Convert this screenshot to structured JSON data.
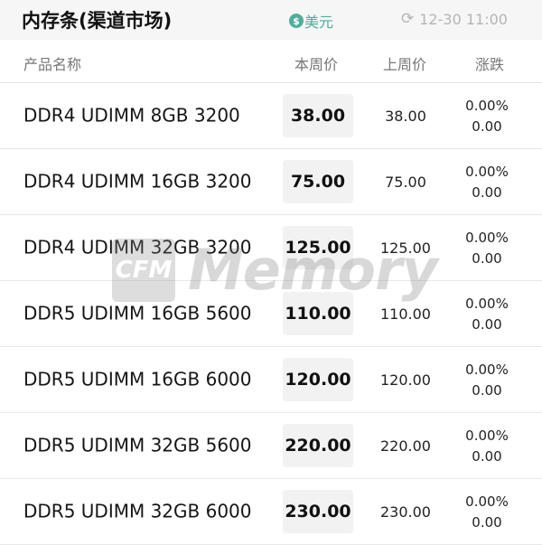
{
  "header": {
    "title": "内存条(渠道市场)",
    "currency_icon": "dollar-circle-icon",
    "currency": "美元",
    "refresh_icon": "refresh-icon",
    "time": "12-30 11:00",
    "accent": "#4fae9c"
  },
  "columns": {
    "name": "产品名称",
    "current": "本周价",
    "previous": "上周价",
    "change": "涨跌"
  },
  "rows": [
    {
      "name": "DDR4 UDIMM 8GB 3200",
      "current": "38.00",
      "previous": "38.00",
      "pct": "0.00%",
      "diff": "0.00"
    },
    {
      "name": "DDR4 UDIMM 16GB 3200",
      "current": "75.00",
      "previous": "75.00",
      "pct": "0.00%",
      "diff": "0.00"
    },
    {
      "name": "DDR4 UDIMM 32GB 3200",
      "current": "125.00",
      "previous": "125.00",
      "pct": "0.00%",
      "diff": "0.00"
    },
    {
      "name": "DDR5 UDIMM 16GB 5600",
      "current": "110.00",
      "previous": "110.00",
      "pct": "0.00%",
      "diff": "0.00"
    },
    {
      "name": "DDR5 UDIMM 16GB 6000",
      "current": "120.00",
      "previous": "120.00",
      "pct": "0.00%",
      "diff": "0.00"
    },
    {
      "name": "DDR5 UDIMM 32GB 5600",
      "current": "220.00",
      "previous": "220.00",
      "pct": "0.00%",
      "diff": "0.00"
    },
    {
      "name": "DDR5 UDIMM 32GB 6000",
      "current": "230.00",
      "previous": "230.00",
      "pct": "0.00%",
      "diff": "0.00"
    }
  ],
  "watermark": {
    "box": "CFM",
    "text": "Memory"
  }
}
